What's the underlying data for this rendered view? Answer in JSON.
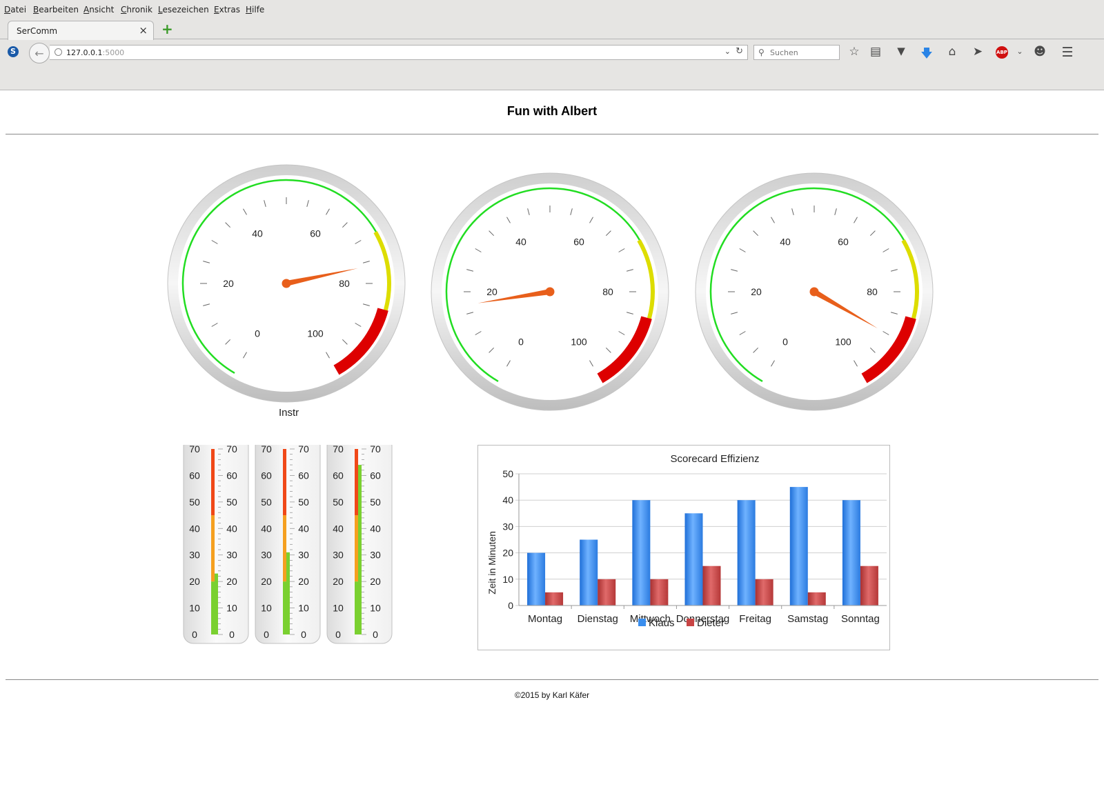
{
  "browser": {
    "menu": [
      "Datei",
      "Bearbeiten",
      "Ansicht",
      "Chronik",
      "Lesezeichen",
      "Extras",
      "Hilfe"
    ],
    "tab_title": "SerComm",
    "tab_close": "×",
    "new_tab": "+",
    "url_host": "127.0.0.1",
    "url_port": ":5000",
    "search_placeholder": "Suchen",
    "logo_letter": "S",
    "adblock": "ABP"
  },
  "page": {
    "title": "Fun with Albert",
    "gauge_label": "Instr",
    "footer": "©2015 by Karl Käfer"
  },
  "gauges": {
    "ticks": [
      "0",
      "20",
      "40",
      "60",
      "80",
      "100"
    ],
    "values": [
      76,
      17,
      90
    ],
    "min": 0,
    "max": 100,
    "bands": [
      {
        "from": 0,
        "to": 70,
        "color": "#22dd22"
      },
      {
        "from": 70,
        "to": 85,
        "color": "#dddd00"
      },
      {
        "from": 85,
        "to": 100,
        "color": "#dd0000"
      }
    ]
  },
  "thermometers": {
    "ticks": [
      "0",
      "10",
      "20",
      "30",
      "40",
      "50",
      "60",
      "70"
    ],
    "min": 0,
    "max": 70,
    "values": [
      23,
      31,
      64
    ],
    "bands": [
      {
        "from": 0,
        "to": 20,
        "color": "#7ad030"
      },
      {
        "from": 20,
        "to": 45,
        "color": "#f5a020"
      },
      {
        "from": 45,
        "to": 70,
        "color": "#f04818"
      }
    ]
  },
  "chart_data": {
    "type": "bar",
    "title": "Scorecard Effizienz",
    "xlabel": "",
    "ylabel": "Zeit in Minuten",
    "ylim": [
      0,
      50
    ],
    "yticks": [
      "0",
      "10",
      "20",
      "30",
      "40",
      "50"
    ],
    "categories": [
      "Montag",
      "Dienstag",
      "Mittwoch",
      "Donnerstag",
      "Freitag",
      "Samstag",
      "Sonntag"
    ],
    "series": [
      {
        "name": "Klaus",
        "values": [
          20,
          25,
          40,
          35,
          40,
          45,
          40
        ],
        "color": "#3a8eee"
      },
      {
        "name": "Dieter",
        "values": [
          5,
          10,
          10,
          15,
          10,
          5,
          15
        ],
        "color": "#c84444"
      }
    ],
    "legend": "bottom",
    "grid": true
  }
}
